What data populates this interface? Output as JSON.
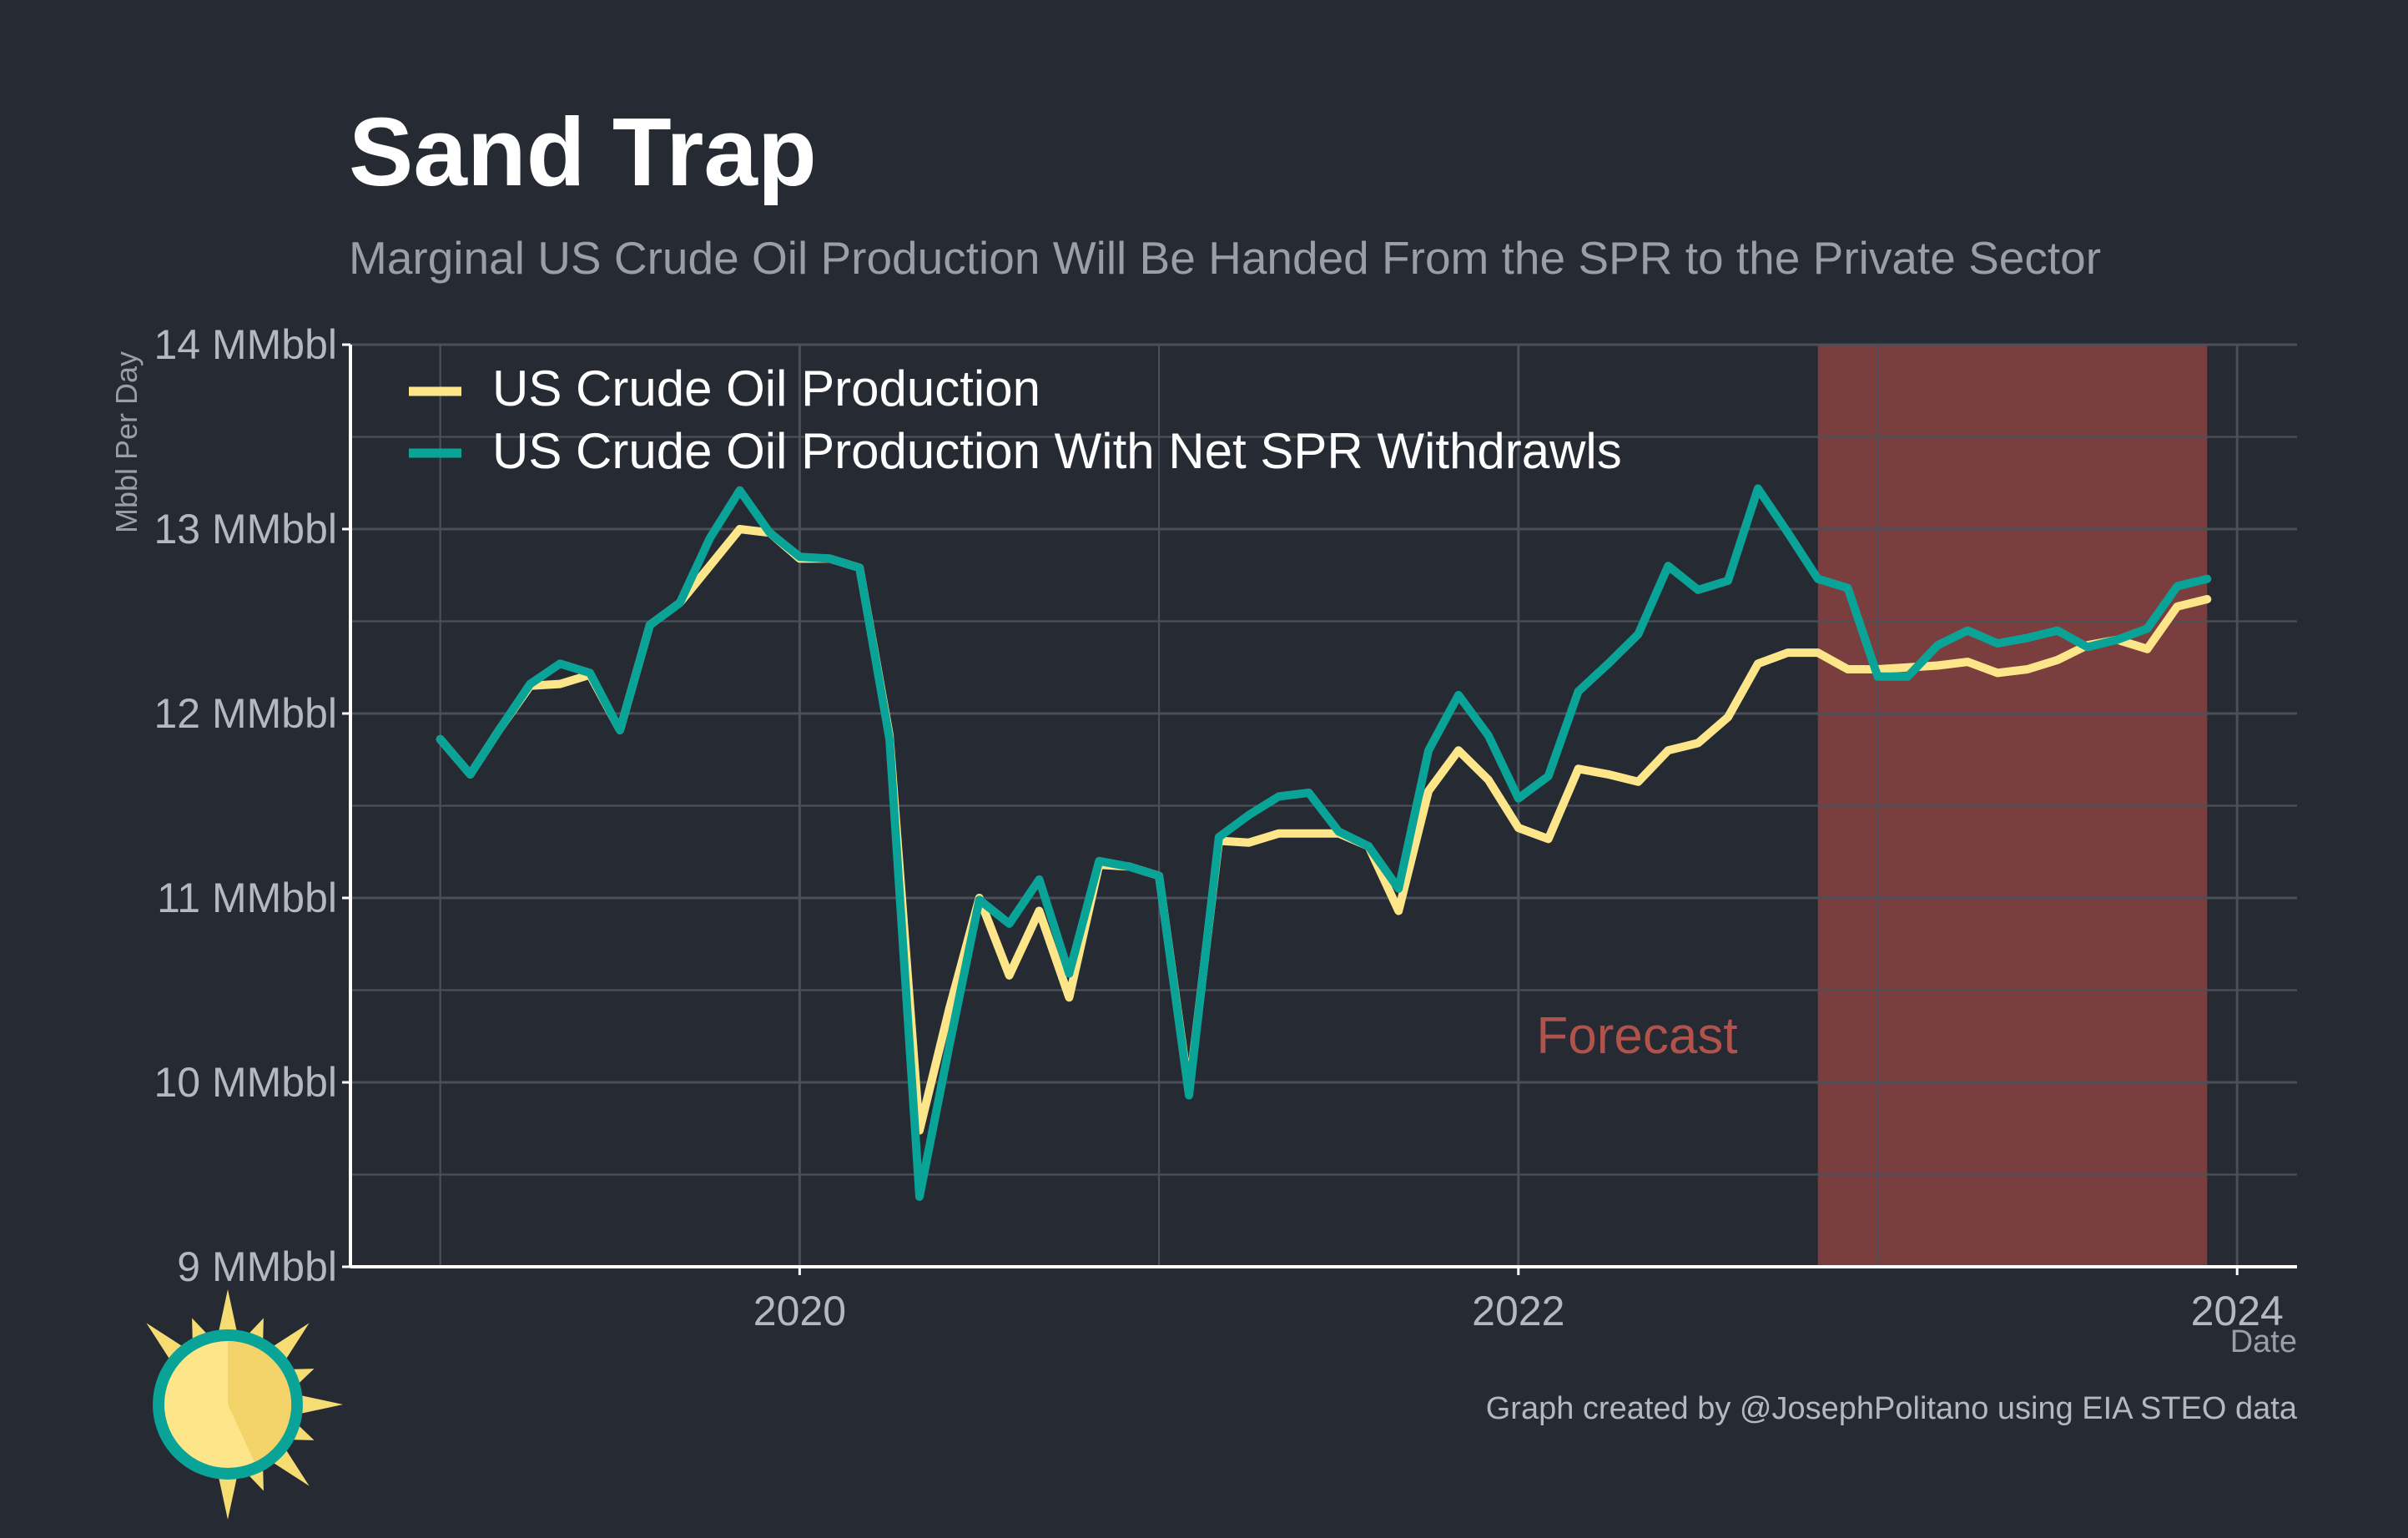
{
  "title": "Sand Trap",
  "subtitle": "Marginal US Crude Oil Production Will Be Handed From the SPR to the Private Sector",
  "caption": "Graph created by @JosephPolitano using EIA STEO data",
  "colors": {
    "background": "#252a33",
    "grid": "#4a4f58",
    "production": "#fde68a",
    "with_spr": "#0aa398",
    "forecast_band": "#7a3e3e",
    "forecast_text": "#b0534c",
    "logo_sun": "#f6dd73",
    "logo_ring": "#0aa398"
  },
  "logo_icon": "sun-icon",
  "chart_data": {
    "type": "line",
    "title": "Sand Trap",
    "subtitle": "Marginal US Crude Oil Production Will Be Handed From the SPR to the Private Sector",
    "xlabel": "Date",
    "ylabel": "Mbbl Per Day",
    "x_ticks": [
      "2020",
      "2022",
      "2024"
    ],
    "x_tick_values": [
      "2020-01",
      "2022-01",
      "2024-01"
    ],
    "y_ticks": [
      "9 MMbbl",
      "10 MMbbl",
      "11 MMbbl",
      "12 MMbbl",
      "13 MMbbl",
      "14 MMbbl"
    ],
    "y_tick_values": [
      9,
      10,
      11,
      12,
      13,
      14
    ],
    "xlim": [
      "2018-10",
      "2024-03"
    ],
    "ylim": [
      9,
      14
    ],
    "grid": true,
    "legend_position": "top-left",
    "shaded_region": {
      "label": "Forecast",
      "x_start": "2022-11",
      "x_end": "2023-12"
    },
    "x": [
      "2019-01",
      "2019-02",
      "2019-03",
      "2019-04",
      "2019-05",
      "2019-06",
      "2019-07",
      "2019-08",
      "2019-09",
      "2019-10",
      "2019-11",
      "2019-12",
      "2020-01",
      "2020-02",
      "2020-03",
      "2020-04",
      "2020-05",
      "2020-06",
      "2020-07",
      "2020-08",
      "2020-09",
      "2020-10",
      "2020-11",
      "2020-12",
      "2021-01",
      "2021-02",
      "2021-03",
      "2021-04",
      "2021-05",
      "2021-06",
      "2021-07",
      "2021-08",
      "2021-09",
      "2021-10",
      "2021-11",
      "2021-12",
      "2022-01",
      "2022-02",
      "2022-03",
      "2022-04",
      "2022-05",
      "2022-06",
      "2022-07",
      "2022-08",
      "2022-09",
      "2022-10",
      "2022-11",
      "2022-12",
      "2023-01",
      "2023-02",
      "2023-03",
      "2023-04",
      "2023-05",
      "2023-06",
      "2023-07",
      "2023-08",
      "2023-09",
      "2023-10",
      "2023-11",
      "2023-12"
    ],
    "series": [
      {
        "name": "US Crude Oil Production",
        "values": [
          11.86,
          11.67,
          11.92,
          12.15,
          12.16,
          12.21,
          11.91,
          12.48,
          12.6,
          12.8,
          13.0,
          12.98,
          12.84,
          12.84,
          12.79,
          11.88,
          9.74,
          10.4,
          11.0,
          10.58,
          10.93,
          10.46,
          11.18,
          11.17,
          11.12,
          9.95,
          11.31,
          11.3,
          11.35,
          11.35,
          11.35,
          11.28,
          10.93,
          11.58,
          11.8,
          11.64,
          11.38,
          11.32,
          11.7,
          11.67,
          11.63,
          11.8,
          11.84,
          11.98,
          12.27,
          12.33,
          12.33,
          12.24,
          12.24,
          12.25,
          12.26,
          12.28,
          12.22,
          12.24,
          12.29,
          12.37,
          12.4,
          12.35,
          12.58,
          12.62
        ]
      },
      {
        "name": "US Crude Oil Production With Net SPR Withdrawls",
        "values": [
          11.86,
          11.67,
          11.92,
          12.16,
          12.27,
          12.22,
          11.91,
          12.48,
          12.6,
          12.95,
          13.21,
          12.98,
          12.85,
          12.84,
          12.79,
          11.86,
          9.38,
          10.2,
          10.99,
          10.86,
          11.1,
          10.59,
          11.2,
          11.17,
          11.12,
          9.93,
          11.33,
          11.45,
          11.55,
          11.57,
          11.36,
          11.28,
          11.05,
          11.8,
          12.1,
          11.88,
          11.54,
          11.66,
          12.12,
          12.27,
          12.43,
          12.8,
          12.67,
          12.72,
          13.22,
          12.98,
          12.73,
          12.68,
          12.2,
          12.2,
          12.37,
          12.45,
          12.38,
          12.41,
          12.45,
          12.36,
          12.4,
          12.46,
          12.69,
          12.73
        ]
      }
    ]
  }
}
